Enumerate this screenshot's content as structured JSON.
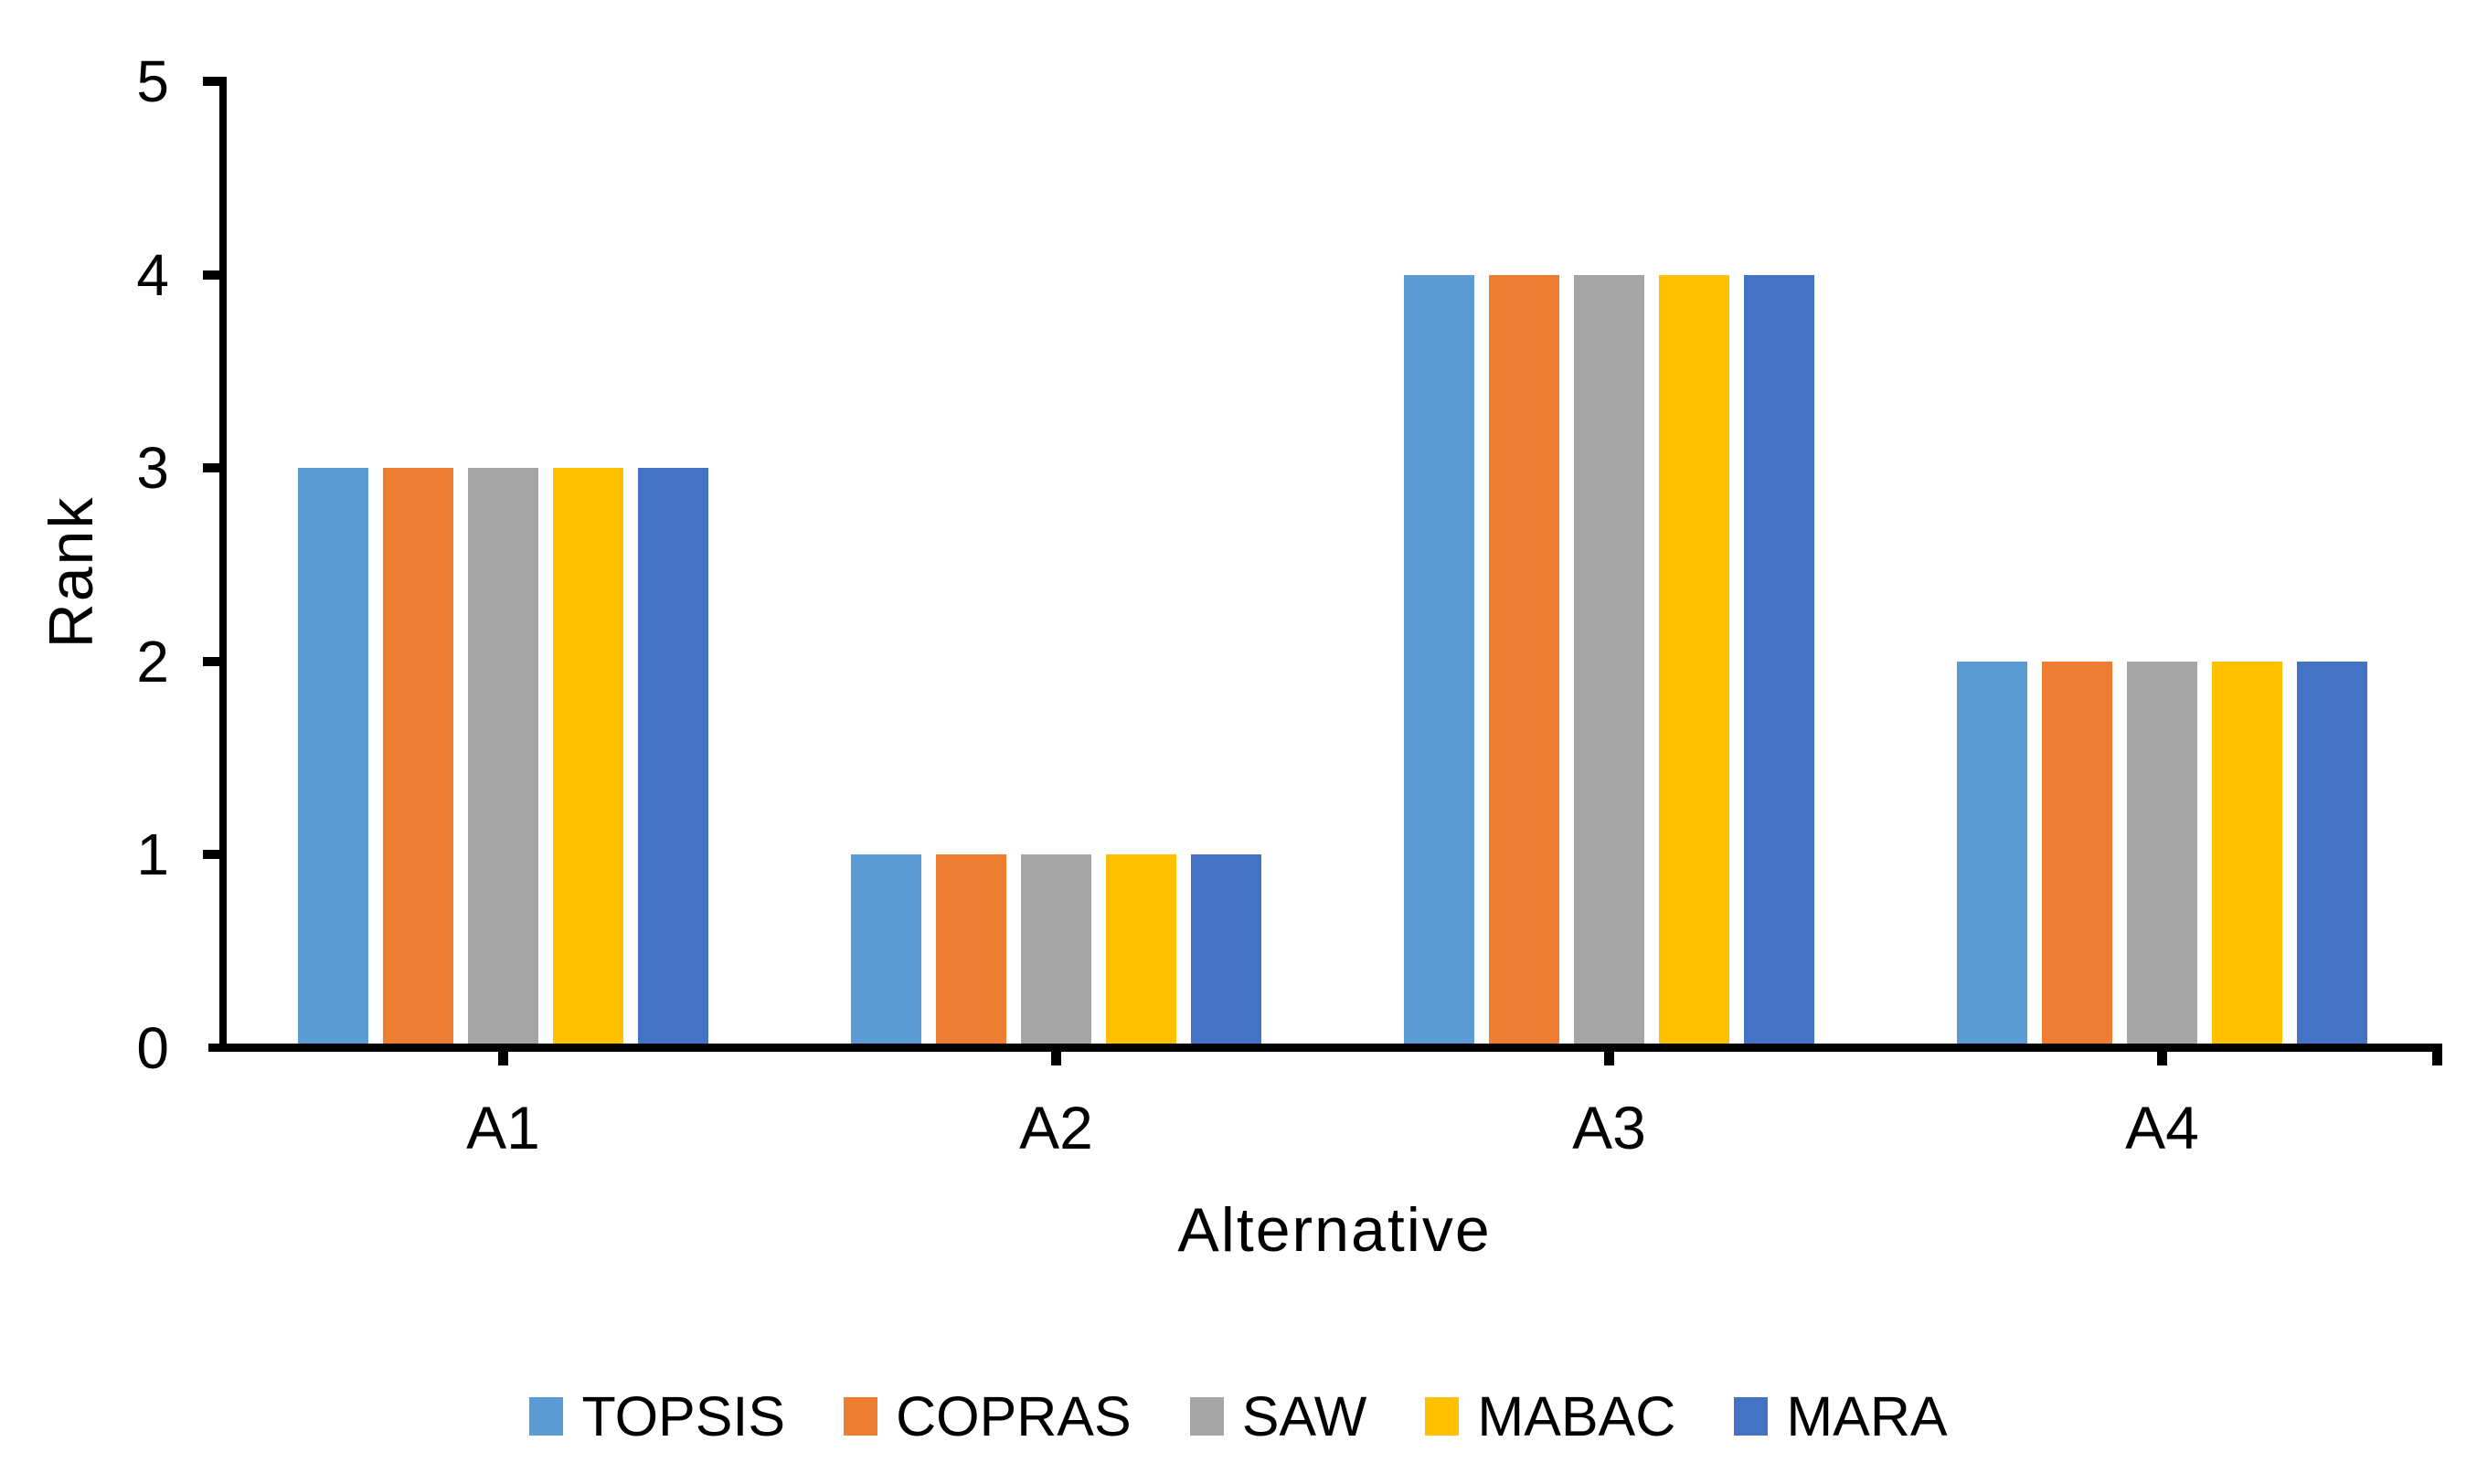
{
  "chart_data": {
    "type": "bar",
    "title": "",
    "categories": [
      "A1",
      "A2",
      "A3",
      "A4"
    ],
    "series": [
      {
        "name": "TOPSIS",
        "color": "#5B9BD5",
        "values": [
          3,
          1,
          4,
          2
        ]
      },
      {
        "name": "COPRAS",
        "color": "#ED7D31",
        "values": [
          3,
          1,
          4,
          2
        ]
      },
      {
        "name": "SAW",
        "color": "#A5A5A5",
        "values": [
          3,
          1,
          4,
          2
        ]
      },
      {
        "name": "MABAC",
        "color": "#FFC000",
        "values": [
          3,
          1,
          4,
          2
        ]
      },
      {
        "name": "MARA",
        "color": "#4472C4",
        "values": [
          3,
          1,
          4,
          2
        ]
      }
    ],
    "xlabel": "Alternative",
    "ylabel": "Rank",
    "ylim": [
      0,
      5
    ],
    "yticks": [
      0,
      1,
      2,
      3,
      4,
      5
    ],
    "grid": false,
    "legend_position": "bottom-center",
    "axis_color": "#000000",
    "text_color": "#000000",
    "background_color": "#FFFFFF"
  }
}
